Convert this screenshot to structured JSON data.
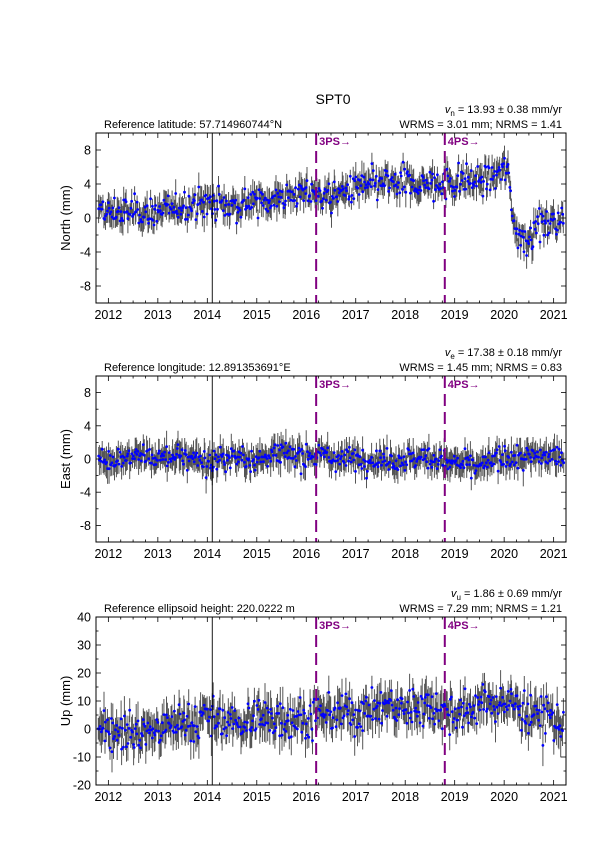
{
  "station": "SPT0",
  "colors": {
    "points": "#0000ff",
    "errorbars": "#555555",
    "event_line": "#800080",
    "axis": "#000000",
    "background": "#ffffff"
  },
  "chart_data": [
    {
      "type": "scatter",
      "component": "north",
      "ylabel": "North (mm)",
      "reference_text": "Reference latitude: 57.714960744°N",
      "rate_text": "13.93 ± 0.38 mm/yr",
      "rate_symbol": "v",
      "rate_subscript": "n",
      "stats_text": "WRMS = 3.01 mm; NRMS = 1.41",
      "xlim": [
        2011.75,
        2021.25
      ],
      "ylim": [
        -10,
        10
      ],
      "xticks": [
        2012,
        2013,
        2014,
        2015,
        2016,
        2017,
        2018,
        2019,
        2020,
        2021
      ],
      "yticks": [
        -8,
        -4,
        0,
        4,
        8
      ],
      "events": [
        {
          "x": 2016.2,
          "label": "3PS→"
        },
        {
          "x": 2018.8,
          "label": "4PS→"
        }
      ],
      "reference_line_x": 2014.1,
      "trend_points": [
        [
          2011.8,
          0.5
        ],
        [
          2012.5,
          0.8
        ],
        [
          2013.0,
          0.6
        ],
        [
          2013.5,
          1.5
        ],
        [
          2014.0,
          1.8
        ],
        [
          2014.5,
          1.5
        ],
        [
          2015.0,
          2.0
        ],
        [
          2015.5,
          2.5
        ],
        [
          2016.0,
          3.0
        ],
        [
          2016.5,
          2.5
        ],
        [
          2017.0,
          3.5
        ],
        [
          2017.5,
          4.0
        ],
        [
          2018.0,
          4.0
        ],
        [
          2018.5,
          3.8
        ],
        [
          2019.0,
          4.2
        ],
        [
          2019.5,
          4.5
        ],
        [
          2019.8,
          5.0
        ],
        [
          2020.0,
          6.0
        ],
        [
          2020.1,
          4.5
        ],
        [
          2020.2,
          -1.0
        ],
        [
          2020.4,
          -2.5
        ],
        [
          2020.7,
          -1.0
        ],
        [
          2021.0,
          -0.5
        ],
        [
          2021.2,
          0.0
        ]
      ],
      "noise_sd": 1.4,
      "sigma": 1.2
    },
    {
      "type": "scatter",
      "component": "east",
      "ylabel": "East (mm)",
      "reference_text": "Reference longitude: 12.891353691°E",
      "rate_text": "17.38 ± 0.18 mm/yr",
      "rate_symbol": "v",
      "rate_subscript": "e",
      "stats_text": "WRMS = 1.45 mm; NRMS = 0.83",
      "xlim": [
        2011.75,
        2021.25
      ],
      "ylim": [
        -10,
        10
      ],
      "xticks": [
        2012,
        2013,
        2014,
        2015,
        2016,
        2017,
        2018,
        2019,
        2020,
        2021
      ],
      "yticks": [
        -8,
        -4,
        0,
        4,
        8
      ],
      "events": [
        {
          "x": 2016.2,
          "label": "3PS→"
        },
        {
          "x": 2018.8,
          "label": "4PS→"
        }
      ],
      "reference_line_x": 2014.1,
      "trend_points": [
        [
          2011.8,
          0.0
        ],
        [
          2012.5,
          0.3
        ],
        [
          2013.0,
          0.0
        ],
        [
          2013.5,
          0.5
        ],
        [
          2014.0,
          -0.3
        ],
        [
          2014.5,
          0.2
        ],
        [
          2015.0,
          0.0
        ],
        [
          2015.5,
          0.8
        ],
        [
          2016.0,
          0.3
        ],
        [
          2016.5,
          0.2
        ],
        [
          2017.0,
          0.0
        ],
        [
          2017.5,
          -0.2
        ],
        [
          2018.0,
          0.0
        ],
        [
          2018.5,
          0.2
        ],
        [
          2019.0,
          -0.5
        ],
        [
          2019.5,
          -1.0
        ],
        [
          2020.0,
          0.3
        ],
        [
          2020.5,
          0.2
        ],
        [
          2021.0,
          0.3
        ],
        [
          2021.2,
          0.0
        ]
      ],
      "noise_sd": 1.1,
      "sigma": 1.3
    },
    {
      "type": "scatter",
      "component": "up",
      "ylabel": "Up (mm)",
      "reference_text": "Reference ellipsoid height: 220.0222 m",
      "rate_text": "1.86 ± 0.69 mm/yr",
      "rate_symbol": "v",
      "rate_subscript": "u",
      "stats_text": "WRMS = 7.29 mm; NRMS = 1.21",
      "xlim": [
        2011.75,
        2021.25
      ],
      "ylim": [
        -20,
        40
      ],
      "xticks": [
        2012,
        2013,
        2014,
        2015,
        2016,
        2017,
        2018,
        2019,
        2020,
        2021
      ],
      "yticks": [
        -20,
        -10,
        0,
        10,
        20,
        30,
        40
      ],
      "events": [
        {
          "x": 2016.2,
          "label": "3PS→"
        },
        {
          "x": 2018.8,
          "label": "4PS→"
        }
      ],
      "reference_line_x": 2014.1,
      "trend_points": [
        [
          2011.8,
          2.0
        ],
        [
          2012.5,
          -2.0
        ],
        [
          2013.0,
          0.0
        ],
        [
          2013.5,
          3.0
        ],
        [
          2014.0,
          4.0
        ],
        [
          2014.5,
          2.0
        ],
        [
          2015.0,
          3.0
        ],
        [
          2015.5,
          5.0
        ],
        [
          2016.0,
          3.0
        ],
        [
          2016.5,
          6.0
        ],
        [
          2017.0,
          5.0
        ],
        [
          2017.5,
          8.0
        ],
        [
          2018.0,
          7.0
        ],
        [
          2018.5,
          9.0
        ],
        [
          2019.0,
          5.0
        ],
        [
          2019.5,
          8.0
        ],
        [
          2020.0,
          10.0
        ],
        [
          2020.5,
          6.0
        ],
        [
          2021.0,
          3.0
        ],
        [
          2021.2,
          2.0
        ]
      ],
      "noise_sd": 5.5,
      "sigma": 5.0
    }
  ]
}
